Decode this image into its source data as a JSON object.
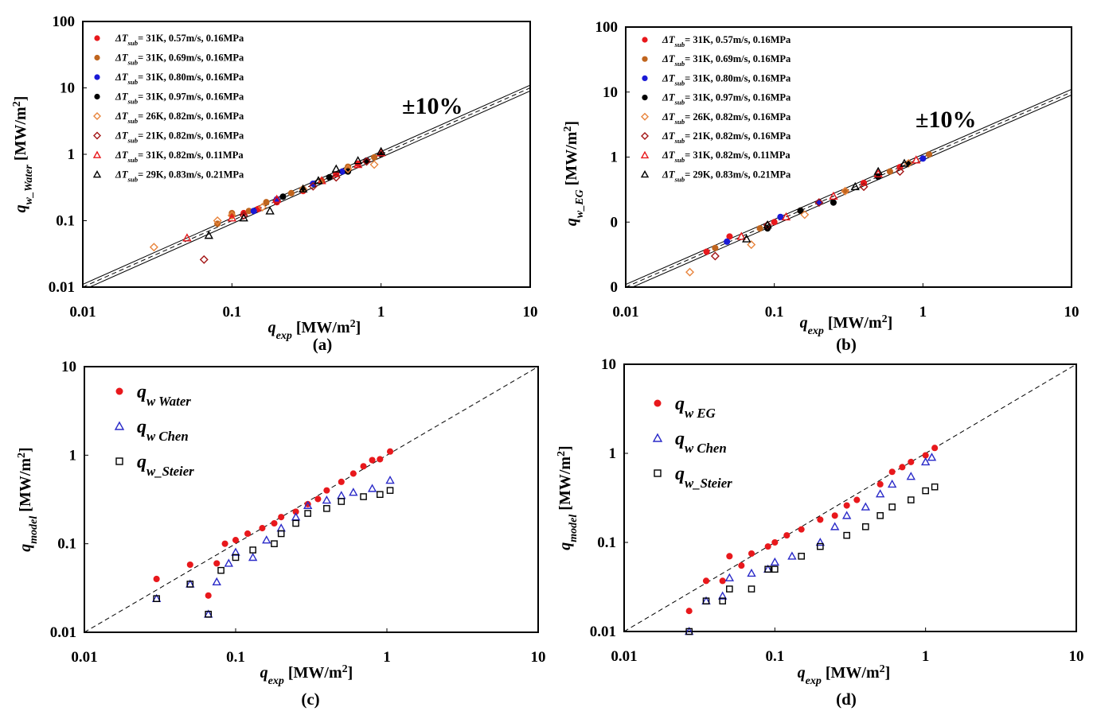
{
  "chart_data": [
    {
      "type": "scatter",
      "caption": "(a)",
      "xscale": "log",
      "yscale": "log",
      "xlim": [
        0.01,
        10
      ],
      "ylim": [
        0.01,
        100
      ],
      "xticks": [
        0.01,
        0.1,
        1,
        10
      ],
      "yticks": [
        0.01,
        0.1,
        1,
        10,
        100
      ],
      "xlabel": {
        "symbol": "q",
        "sub": "exp",
        "unit": " [MW/m",
        "sup": "2",
        "end": "]"
      },
      "ylabel": {
        "symbol": "q",
        "sub": "w_Water",
        "unit": " [MW/m",
        "sup": "2",
        "end": "]"
      },
      "annotation": "±10%",
      "reference_lines": [
        {
          "factor": 1,
          "style": "dashed"
        },
        {
          "factor": 1.1,
          "style": "solid"
        },
        {
          "factor": 0.9,
          "style": "solid"
        }
      ],
      "series": [
        {
          "name": {
            "symbol": "ΔT",
            "sub": "sub",
            "text": "= 31K, 0.57m/s, 0.16MPa"
          },
          "color": "#e8181c",
          "marker": "circle",
          "filled": true,
          "x": [
            0.1,
            0.12,
            0.15,
            0.2,
            0.3,
            0.5,
            0.7
          ],
          "values": [
            0.12,
            0.13,
            0.15,
            0.19,
            0.28,
            0.5,
            0.72
          ]
        },
        {
          "name": {
            "symbol": "ΔT",
            "sub": "sub",
            "text": "= 31K, 0.69m/s, 0.16MPa"
          },
          "color": "#c0651e",
          "marker": "circle",
          "filled": true,
          "x": [
            0.08,
            0.1,
            0.13,
            0.17,
            0.25,
            0.4,
            0.6,
            0.9
          ],
          "values": [
            0.09,
            0.13,
            0.14,
            0.19,
            0.26,
            0.4,
            0.65,
            0.9
          ]
        },
        {
          "name": {
            "symbol": "ΔT",
            "sub": "sub",
            "text": "= 31K, 0.80m/s, 0.16MPa"
          },
          "color": "#1a1ad6",
          "marker": "circle",
          "filled": true,
          "x": [
            0.14,
            0.2,
            0.35,
            0.55,
            0.8
          ],
          "values": [
            0.14,
            0.21,
            0.36,
            0.55,
            0.8
          ]
        },
        {
          "name": {
            "symbol": "ΔT",
            "sub": "sub",
            "text": "= 31K, 0.97m/s, 0.16MPa"
          },
          "color": "#000000",
          "marker": "circle",
          "filled": true,
          "x": [
            0.22,
            0.3,
            0.45,
            0.6,
            0.8,
            1.0
          ],
          "values": [
            0.23,
            0.3,
            0.45,
            0.55,
            0.8,
            1.0
          ]
        },
        {
          "name": {
            "symbol": "ΔT",
            "sub": "sub",
            "text": "= 26K, 0.82m/s, 0.16MPa"
          },
          "color": "#e8843c",
          "marker": "diamond",
          "filled": false,
          "x": [
            0.03,
            0.08,
            0.1,
            0.16,
            0.3,
            0.6,
            0.9
          ],
          "values": [
            0.04,
            0.1,
            0.12,
            0.16,
            0.3,
            0.6,
            0.7
          ]
        },
        {
          "name": {
            "symbol": "ΔT",
            "sub": "sub",
            "text": "= 21K, 0.82m/s, 0.16MPa"
          },
          "color": "#a31515",
          "marker": "diamond",
          "filled": false,
          "x": [
            0.065,
            0.12,
            0.2,
            0.35,
            0.5,
            0.8
          ],
          "values": [
            0.026,
            0.12,
            0.2,
            0.33,
            0.45,
            0.78
          ]
        },
        {
          "name": {
            "symbol": "ΔT",
            "sub": "sub",
            "text": "= 31K, 0.82m/s, 0.11MPa"
          },
          "color": "#e8181c",
          "marker": "triangle",
          "filled": false,
          "x": [
            0.05,
            0.1,
            0.2,
            0.4,
            0.7,
            1.0
          ],
          "values": [
            0.055,
            0.11,
            0.21,
            0.4,
            0.7,
            1.05
          ]
        },
        {
          "name": {
            "symbol": "ΔT",
            "sub": "sub",
            "text": "= 29K, 0.83m/s, 0.21MPa"
          },
          "color": "#000000",
          "marker": "triangle",
          "filled": false,
          "x": [
            0.07,
            0.12,
            0.18,
            0.3,
            0.38,
            0.5,
            0.7,
            1.0
          ],
          "values": [
            0.06,
            0.11,
            0.14,
            0.3,
            0.4,
            0.6,
            0.8,
            1.1
          ]
        }
      ]
    },
    {
      "type": "scatter",
      "caption": "(b)",
      "xscale": "log",
      "yscale": "log",
      "xlim": [
        0.01,
        10
      ],
      "ylim": [
        0.01,
        100
      ],
      "xticks": [
        0.01,
        0.1,
        1,
        10
      ],
      "yticks": [
        {
          "value": 0.01,
          "label": "0"
        },
        {
          "value": 0.1,
          "label": "0"
        },
        1,
        10,
        100
      ],
      "xlabel": {
        "symbol": "q",
        "sub": "exp",
        "unit": " [MW/m",
        "sup": "2",
        "end": "]"
      },
      "ylabel": {
        "symbol": "q",
        "sub": "w_EG",
        "unit": " [MW/m",
        "sup": "2",
        "end": "]"
      },
      "annotation": "±10%",
      "reference_lines": [
        {
          "factor": 1,
          "style": "dashed"
        },
        {
          "factor": 1.1,
          "style": "solid"
        },
        {
          "factor": 0.9,
          "style": "solid"
        }
      ],
      "series": [
        {
          "name": {
            "symbol": "ΔT",
            "sub": "sub",
            "text": "= 31K, 0.57m/s, 0.16MPa"
          },
          "color": "#e8181c",
          "marker": "circle",
          "filled": true,
          "x": [
            0.035,
            0.05,
            0.1,
            0.2,
            0.4,
            0.7
          ],
          "values": [
            0.035,
            0.06,
            0.1,
            0.2,
            0.4,
            0.7
          ]
        },
        {
          "name": {
            "symbol": "ΔT",
            "sub": "sub",
            "text": "= 31K, 0.69m/s, 0.16MPa"
          },
          "color": "#c0651e",
          "marker": "circle",
          "filled": true,
          "x": [
            0.04,
            0.08,
            0.15,
            0.3,
            0.6,
            1.1
          ],
          "values": [
            0.04,
            0.08,
            0.15,
            0.3,
            0.6,
            1.1
          ]
        },
        {
          "name": {
            "symbol": "ΔT",
            "sub": "sub",
            "text": "= 31K, 0.80m/s, 0.16MPa"
          },
          "color": "#1a1ad6",
          "marker": "circle",
          "filled": true,
          "x": [
            0.048,
            0.11,
            0.2,
            0.5,
            1.0
          ],
          "values": [
            0.05,
            0.12,
            0.2,
            0.5,
            0.95
          ]
        },
        {
          "name": {
            "symbol": "ΔT",
            "sub": "sub",
            "text": "= 31K, 0.97m/s, 0.16MPa"
          },
          "color": "#000000",
          "marker": "circle",
          "filled": true,
          "x": [
            0.09,
            0.15,
            0.25,
            0.5,
            0.8
          ],
          "values": [
            0.08,
            0.15,
            0.2,
            0.5,
            0.8
          ]
        },
        {
          "name": {
            "symbol": "ΔT",
            "sub": "sub",
            "text": "= 26K, 0.82m/s, 0.16MPa"
          },
          "color": "#e8843c",
          "marker": "diamond",
          "filled": false,
          "x": [
            0.027,
            0.07,
            0.16,
            0.3,
            0.8
          ],
          "values": [
            0.017,
            0.045,
            0.13,
            0.3,
            0.8
          ]
        },
        {
          "name": {
            "symbol": "ΔT",
            "sub": "sub",
            "text": "= 21K, 0.82m/s, 0.16MPa"
          },
          "color": "#a31515",
          "marker": "diamond",
          "filled": false,
          "x": [
            0.04,
            0.09,
            0.2,
            0.4,
            0.7
          ],
          "values": [
            0.03,
            0.09,
            0.2,
            0.35,
            0.6
          ]
        },
        {
          "name": {
            "symbol": "ΔT",
            "sub": "sub",
            "text": "= 31K, 0.82m/s, 0.11MPa"
          },
          "color": "#e8181c",
          "marker": "triangle",
          "filled": false,
          "x": [
            0.06,
            0.12,
            0.25,
            0.5,
            0.9
          ],
          "values": [
            0.06,
            0.12,
            0.25,
            0.55,
            0.9
          ]
        },
        {
          "name": {
            "symbol": "ΔT",
            "sub": "sub",
            "text": "= 29K, 0.83m/s, 0.21MPa"
          },
          "color": "#000000",
          "marker": "triangle",
          "filled": false,
          "x": [
            0.065,
            0.09,
            0.35,
            0.5,
            0.75
          ],
          "values": [
            0.055,
            0.09,
            0.35,
            0.6,
            0.8
          ]
        }
      ]
    },
    {
      "type": "scatter",
      "caption": "(c)",
      "xscale": "log",
      "yscale": "log",
      "xlim": [
        0.01,
        10
      ],
      "ylim": [
        0.01,
        10
      ],
      "xticks": [
        0.01,
        0.1,
        1,
        10
      ],
      "yticks": [
        0.01,
        0.1,
        1,
        10
      ],
      "xlabel": {
        "symbol": "q",
        "sub": "exp",
        "unit": " [MW/m",
        "sup": "2",
        "end": "]"
      },
      "ylabel": {
        "symbol": "q",
        "sub": "model",
        "unit": " [MW/m",
        "sup": "2",
        "end": "]"
      },
      "reference_lines": [
        {
          "factor": 1,
          "style": "dashed"
        }
      ],
      "series": [
        {
          "name": {
            "symbol": "q",
            "sub": "w  Water"
          },
          "color": "#e8181c",
          "marker": "circle",
          "filled": true,
          "x": [
            0.03,
            0.05,
            0.066,
            0.075,
            0.085,
            0.1,
            0.12,
            0.15,
            0.18,
            0.2,
            0.25,
            0.3,
            0.35,
            0.4,
            0.5,
            0.6,
            0.7,
            0.8,
            0.9,
            1.05
          ],
          "values": [
            0.04,
            0.058,
            0.026,
            0.06,
            0.1,
            0.11,
            0.13,
            0.15,
            0.17,
            0.2,
            0.23,
            0.28,
            0.32,
            0.4,
            0.5,
            0.62,
            0.75,
            0.88,
            0.9,
            1.1
          ]
        },
        {
          "name": {
            "symbol": "q",
            "sub": "w  Chen"
          },
          "color": "#2a2ac8",
          "marker": "triangle",
          "filled": false,
          "x": [
            0.03,
            0.05,
            0.066,
            0.075,
            0.09,
            0.1,
            0.13,
            0.16,
            0.2,
            0.25,
            0.3,
            0.4,
            0.5,
            0.6,
            0.8,
            1.05
          ],
          "values": [
            0.024,
            0.035,
            0.016,
            0.037,
            0.06,
            0.08,
            0.07,
            0.11,
            0.15,
            0.2,
            0.27,
            0.31,
            0.35,
            0.38,
            0.42,
            0.52
          ]
        },
        {
          "name": {
            "symbol": "q",
            "sub": "w_Steier"
          },
          "color": "#000000",
          "marker": "square",
          "filled": false,
          "x": [
            0.03,
            0.05,
            0.066,
            0.08,
            0.1,
            0.13,
            0.18,
            0.2,
            0.25,
            0.3,
            0.4,
            0.5,
            0.7,
            0.9,
            1.05
          ],
          "values": [
            0.024,
            0.035,
            0.016,
            0.05,
            0.07,
            0.085,
            0.1,
            0.13,
            0.17,
            0.22,
            0.25,
            0.3,
            0.34,
            0.36,
            0.4
          ]
        }
      ]
    },
    {
      "type": "scatter",
      "caption": "(d)",
      "xscale": "log",
      "yscale": "log",
      "xlim": [
        0.01,
        10
      ],
      "ylim": [
        0.01,
        10
      ],
      "xticks": [
        0.01,
        0.1,
        1,
        10
      ],
      "yticks": [
        0.01,
        0.1,
        1,
        10
      ],
      "xlabel": {
        "symbol": "q",
        "sub": "exp",
        "unit": " [MW/m",
        "sup": "2",
        "end": "]"
      },
      "ylabel": {
        "symbol": "q",
        "sub": "model",
        "unit": " [MW/m",
        "sup": "2",
        "end": "]"
      },
      "reference_lines": [
        {
          "factor": 1,
          "style": "dashed"
        }
      ],
      "series": [
        {
          "name": {
            "symbol": "q",
            "sub": "w  EG"
          },
          "color": "#e8181c",
          "marker": "circle",
          "filled": true,
          "x": [
            0.027,
            0.035,
            0.045,
            0.05,
            0.06,
            0.07,
            0.09,
            0.1,
            0.12,
            0.15,
            0.2,
            0.25,
            0.3,
            0.35,
            0.5,
            0.6,
            0.7,
            0.8,
            1.0,
            1.15
          ],
          "values": [
            0.017,
            0.037,
            0.037,
            0.07,
            0.055,
            0.075,
            0.09,
            0.1,
            0.12,
            0.14,
            0.18,
            0.2,
            0.26,
            0.3,
            0.45,
            0.62,
            0.7,
            0.8,
            0.95,
            1.15
          ]
        },
        {
          "name": {
            "symbol": "q",
            "sub": "w  Chen"
          },
          "color": "#2a2ac8",
          "marker": "triangle",
          "filled": false,
          "x": [
            0.027,
            0.035,
            0.045,
            0.05,
            0.07,
            0.09,
            0.1,
            0.13,
            0.2,
            0.25,
            0.3,
            0.4,
            0.5,
            0.6,
            0.8,
            1.0,
            1.1
          ],
          "values": [
            0.01,
            0.022,
            0.025,
            0.04,
            0.045,
            0.05,
            0.06,
            0.07,
            0.1,
            0.15,
            0.2,
            0.25,
            0.35,
            0.45,
            0.55,
            0.8,
            0.9
          ]
        },
        {
          "name": {
            "symbol": "q",
            "sub": "w_Steier"
          },
          "color": "#000000",
          "marker": "square",
          "filled": false,
          "x": [
            0.027,
            0.035,
            0.045,
            0.05,
            0.07,
            0.09,
            0.1,
            0.15,
            0.2,
            0.3,
            0.4,
            0.5,
            0.6,
            0.8,
            1.0,
            1.15
          ],
          "values": [
            0.01,
            0.022,
            0.022,
            0.03,
            0.03,
            0.05,
            0.05,
            0.07,
            0.09,
            0.12,
            0.15,
            0.2,
            0.25,
            0.3,
            0.38,
            0.42
          ]
        }
      ]
    }
  ]
}
